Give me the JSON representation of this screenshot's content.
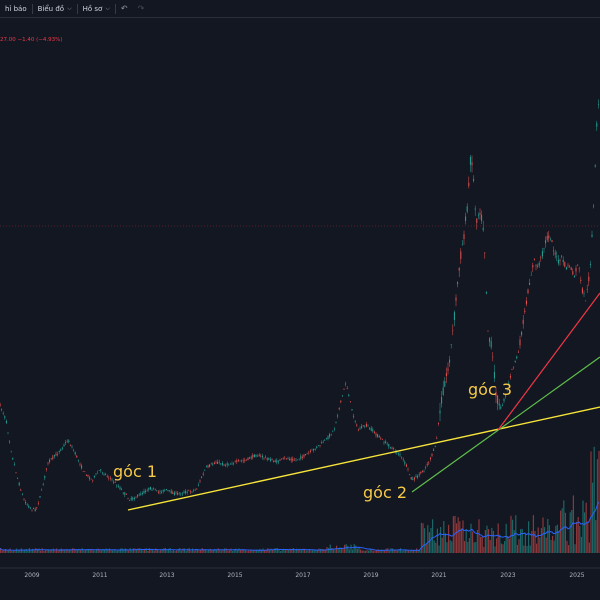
{
  "toolbar": {
    "indicators_label": "hỉ báo",
    "chart_label": "Biểu đồ",
    "profile_label": "Hồ sơ"
  },
  "price_readout": "27.00 −1.40 (−4.93%)",
  "annotations": {
    "angle1": "góc 1",
    "angle2": "góc 2",
    "angle3": "góc 3"
  },
  "chart_data": {
    "type": "candlestick",
    "x_axis": {
      "tick_labels": [
        "2009",
        "2011",
        "2013",
        "2015",
        "2017",
        "2019",
        "2021",
        "2023",
        "2025"
      ]
    },
    "colors": {
      "up": "#26a69a",
      "down": "#ef5350",
      "background": "#131722",
      "volume_ma": "#2962ff"
    },
    "trendlines": [
      {
        "label": "góc 1",
        "color": "#f7e43a",
        "from": "2012",
        "to": "2026"
      },
      {
        "label": "góc 2",
        "color": "#5fbf4a",
        "from": "2020",
        "to": "2026"
      },
      {
        "label": "góc 3",
        "color": "#f23645",
        "from": "2022",
        "to": "2026"
      }
    ],
    "horizontal_level": {
      "color": "#f23645"
    },
    "grid": false
  }
}
